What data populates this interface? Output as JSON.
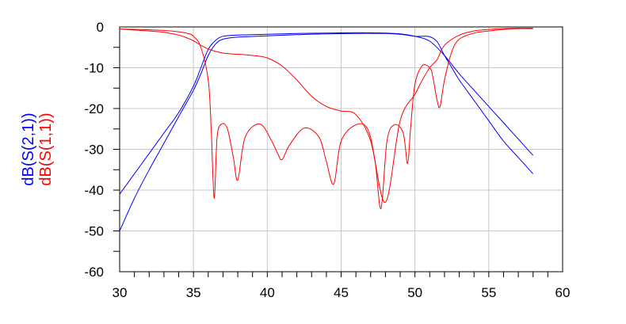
{
  "chart_data": {
    "type": "line",
    "xlim": [
      30,
      60
    ],
    "ylim": [
      -60,
      0
    ],
    "xticks": [
      "30",
      "35",
      "40",
      "45",
      "50",
      "55",
      "60"
    ],
    "yticks": [
      "0",
      "-10",
      "-20",
      "-30",
      "-40",
      "-50",
      "-60"
    ],
    "grid": true,
    "ylabel_parts": [
      {
        "text": "dB(S(2,1))",
        "color": "#0000ff"
      },
      {
        "text": "dB(S(1,1))",
        "color": "#ff0000"
      }
    ],
    "series": [
      {
        "name": "dB(S(2,1))",
        "color": "#0000ff",
        "x": [
          30,
          31,
          32,
          33,
          34,
          35,
          35.5,
          36,
          36.5,
          37,
          38,
          40,
          42,
          44,
          46,
          48,
          49,
          50,
          51,
          52,
          53,
          54,
          55,
          56,
          57,
          58
        ],
        "y": [
          -41,
          -36,
          -31,
          -26,
          -21,
          -14.5,
          -10,
          -5.5,
          -3.3,
          -2.3,
          -2,
          -1.8,
          -1.6,
          -1.5,
          -1.4,
          -1.5,
          -1.7,
          -2.3,
          -3.5,
          -7,
          -11.5,
          -15.5,
          -19.5,
          -23.5,
          -27.5,
          -31.5
        ]
      },
      {
        "name": "dB(S(2,1))",
        "color": "#0000ff",
        "x": [
          30,
          31,
          32,
          33,
          34,
          35,
          35.5,
          36,
          36.5,
          37,
          38,
          40,
          42,
          44,
          46,
          48,
          49,
          50,
          50.5,
          51,
          51.5,
          52,
          52.5,
          53,
          54,
          55,
          56,
          57,
          58
        ],
        "y": [
          -50,
          -42,
          -35,
          -28.5,
          -22,
          -15.5,
          -11.5,
          -7,
          -4.2,
          -3,
          -2.5,
          -2.2,
          -1.9,
          -1.7,
          -1.6,
          -1.6,
          -1.8,
          -2.3,
          -2.3,
          -2.4,
          -3.6,
          -7,
          -10,
          -13,
          -18,
          -23,
          -28,
          -32,
          -36
        ]
      },
      {
        "name": "dB(S(1,1))",
        "color": "#ff0000",
        "x": [
          30,
          32,
          33,
          34,
          34.5,
          35,
          35.5,
          36,
          36.5,
          37,
          37.5,
          38,
          39,
          40,
          41,
          42,
          43,
          44,
          45,
          46,
          47,
          48,
          49,
          50,
          50.5,
          51,
          51.5,
          52,
          53,
          54,
          55,
          56,
          57,
          58
        ],
        "y": [
          -0.5,
          -1,
          -1.3,
          -2,
          -2.6,
          -3.4,
          -4.5,
          -5.4,
          -6,
          -6.4,
          -6.6,
          -6.7,
          -7,
          -7.6,
          -9.6,
          -13,
          -17,
          -19.5,
          -20.6,
          -21.5,
          -28,
          -43,
          -23,
          -16.5,
          -13,
          -10,
          -8,
          -4.5,
          -2,
          -1,
          -0.6,
          -0.4,
          -0.3,
          -0.3
        ]
      },
      {
        "name": "dB(S(1,1))",
        "color": "#ff0000",
        "x": [
          30,
          32,
          33.5,
          34.5,
          35,
          35.5,
          36,
          36.2,
          36.4,
          36.6,
          36.9,
          37.3,
          37.7,
          38,
          38.5,
          39.5,
          40.3,
          40.7,
          41,
          41.5,
          42.5,
          43.5,
          44,
          44.5,
          45,
          46,
          46.8,
          47.3,
          47.7,
          48.1,
          48.6,
          49.2,
          49.5,
          49.7,
          50,
          50.5,
          51,
          51.2,
          51.5,
          51.7,
          52,
          52.5,
          53,
          54,
          55,
          56,
          57,
          58
        ],
        "y": [
          -0.5,
          -0.7,
          -1,
          -1.5,
          -2.3,
          -5,
          -13,
          -25,
          -42,
          -27,
          -23.8,
          -25,
          -32,
          -37.5,
          -27,
          -23.8,
          -28,
          -31,
          -32.5,
          -29,
          -24.8,
          -27,
          -33,
          -38.5,
          -28,
          -24,
          -25,
          -33,
          -44.5,
          -28,
          -24,
          -26,
          -33.5,
          -25,
          -14,
          -9.5,
          -10,
          -12,
          -18,
          -19.5,
          -13,
          -6,
          -3,
          -1.5,
          -1,
          -0.6,
          -0.4,
          -0.4
        ]
      }
    ]
  }
}
